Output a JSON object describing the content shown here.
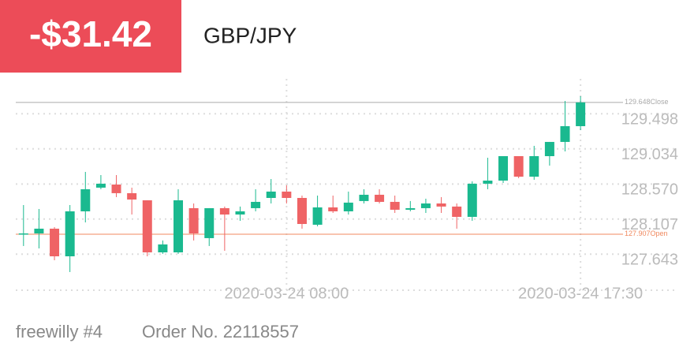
{
  "pnl": "-$31.42",
  "symbol": "GBP/JPY",
  "footer": {
    "account": "freewilly #4",
    "order": "Order No. 22118557"
  },
  "chart_data": {
    "type": "candlestick",
    "categories": [
      null,
      null,
      null,
      null,
      null,
      null,
      null,
      null,
      null,
      null,
      null,
      null,
      null,
      null,
      null,
      null,
      null,
      "2020-03-24 08:00",
      null,
      null,
      null,
      null,
      null,
      null,
      null,
      null,
      null,
      null,
      null,
      null,
      null,
      null,
      null,
      null,
      null,
      null,
      "2020-03-24 17:30"
    ],
    "open": [
      127.907,
      127.917,
      127.98,
      127.615,
      128.209,
      128.522,
      128.563,
      128.449,
      128.355,
      127.667,
      127.667,
      128.251,
      127.855,
      128.251,
      128.167,
      128.251,
      128.386,
      128.47,
      128.386,
      128.032,
      128.261,
      128.209,
      128.345,
      128.428,
      128.334,
      128.23,
      128.251,
      128.313,
      128.272,
      128.136,
      128.574,
      128.615,
      128.938,
      128.667,
      128.938,
      129.126,
      129.334
    ],
    "high": [
      128.292,
      128.24,
      128.001,
      128.292,
      128.73,
      128.688,
      128.688,
      128.522,
      128.355,
      127.824,
      128.501,
      128.313,
      128.251,
      128.272,
      128.272,
      128.501,
      128.636,
      128.553,
      128.417,
      128.417,
      128.417,
      128.47,
      128.501,
      128.501,
      128.417,
      128.345,
      128.376,
      128.397,
      128.313,
      128.605,
      128.917,
      128.938,
      128.938,
      129.074,
      129.126,
      129.667,
      129.73
    ],
    "low": [
      127.751,
      127.719,
      127.563,
      127.407,
      128.063,
      128.501,
      128.397,
      128.167,
      127.615,
      127.647,
      127.647,
      127.824,
      127.751,
      127.688,
      128.084,
      128.209,
      128.313,
      128.313,
      127.98,
      128.011,
      128.188,
      128.167,
      128.313,
      128.313,
      128.188,
      128.209,
      128.188,
      128.188,
      127.98,
      128.084,
      128.501,
      128.584,
      128.647,
      128.626,
      128.813,
      129.001,
      129.282
    ],
    "close": [
      127.917,
      127.98,
      127.615,
      128.209,
      128.501,
      128.574,
      128.449,
      128.365,
      127.667,
      127.772,
      128.355,
      127.917,
      128.251,
      128.167,
      128.209,
      128.334,
      128.47,
      128.386,
      128.042,
      128.261,
      128.209,
      128.324,
      128.428,
      128.334,
      128.23,
      128.251,
      128.313,
      128.272,
      128.136,
      128.574,
      128.615,
      128.938,
      128.667,
      128.938,
      129.126,
      129.334,
      129.648
    ],
    "up_color": "#1ab98f",
    "down_color": "#ef6365",
    "ylim": [
      127.167,
      129.959
    ],
    "yticks": [
      127.643,
      128.107,
      {
        "value": 128.57,
        "label": "128.570"
      },
      129.034,
      129.498
    ],
    "grid": true,
    "reference_lines": [
      {
        "value": 127.907,
        "label": "Open",
        "color": "#f0895f"
      },
      {
        "value": 129.648,
        "label": "Close",
        "color": "#aaaaaa"
      }
    ]
  }
}
